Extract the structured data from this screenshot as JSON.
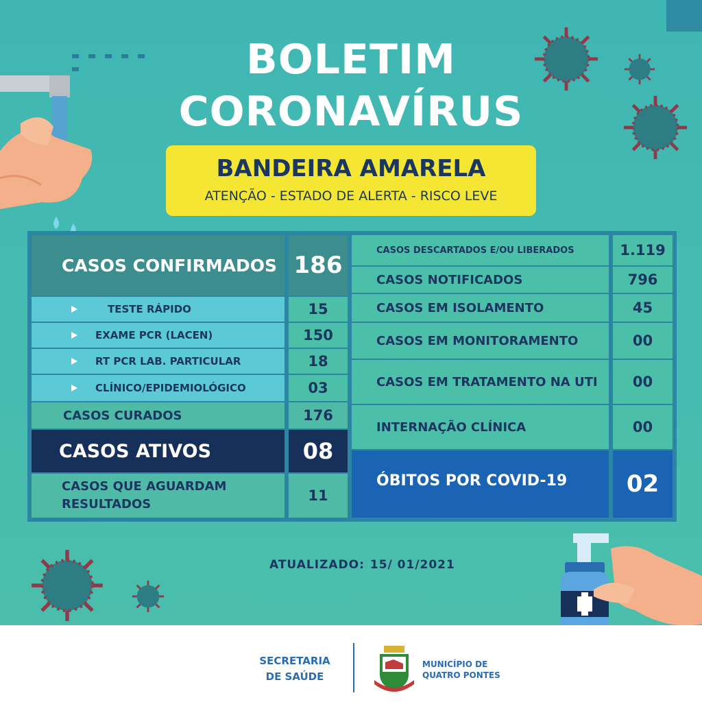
{
  "header": {
    "title_line1": "BOLETIM",
    "title_line2": "CORONAVÍRUS",
    "flag_title": "BANDEIRA AMARELA",
    "flag_subtitle": "ATENÇÃO - ESTADO DE ALERTA - RISCO LEVE"
  },
  "left_table": {
    "confirmed": {
      "label": "CASOS CONFIRMADOS",
      "value": "186"
    },
    "breakdown": [
      {
        "label": "TESTE RÁPIDO",
        "value": "15"
      },
      {
        "label": "EXAME PCR (LACEN)",
        "value": "150"
      },
      {
        "label": "RT PCR LAB. PARTICULAR",
        "value": "18"
      },
      {
        "label": "CLÍNICO/EPIDEMIOLÓGICO",
        "value": "03"
      }
    ],
    "cured": {
      "label": "CASOS CURADOS",
      "value": "176"
    },
    "active": {
      "label": "CASOS ATIVOS",
      "value": "08"
    },
    "awaiting": {
      "label_line1": "CASOS QUE AGUARDAM",
      "label_line2": "RESULTADOS",
      "value": "11"
    }
  },
  "right_table": {
    "rows": [
      {
        "label": "CASOS DESCARTADOS E/OU LIBERADOS",
        "value": "1.119"
      },
      {
        "label": "CASOS NOTIFICADOS",
        "value": "796"
      },
      {
        "label": "CASOS EM ISOLAMENTO",
        "value": "45"
      },
      {
        "label": "CASOS EM MONITORAMENTO",
        "value": "00"
      },
      {
        "label": "CASOS EM TRATAMENTO NA UTI",
        "value": "00"
      },
      {
        "label": "INTERNAÇÃO CLÍNICA",
        "value": "00"
      }
    ],
    "deaths": {
      "label": "ÓBITOS POR COVID-19",
      "value": "02"
    }
  },
  "updated": {
    "label": "ATUALIZADO:",
    "date": "15/ 01/2021"
  },
  "footer": {
    "secretaria_line1": "SECRETARIA",
    "secretaria_line2": "DE SAÚDE",
    "municipio_line1": "MUNICÍPIO DE",
    "municipio_line2": "QUATRO PONTES"
  },
  "colors": {
    "background": "#45bbb0",
    "flag_yellow": "#f5e634",
    "navy": "#17305a",
    "death_blue": "#1b63b3",
    "frame_blue": "#2a86a3"
  }
}
